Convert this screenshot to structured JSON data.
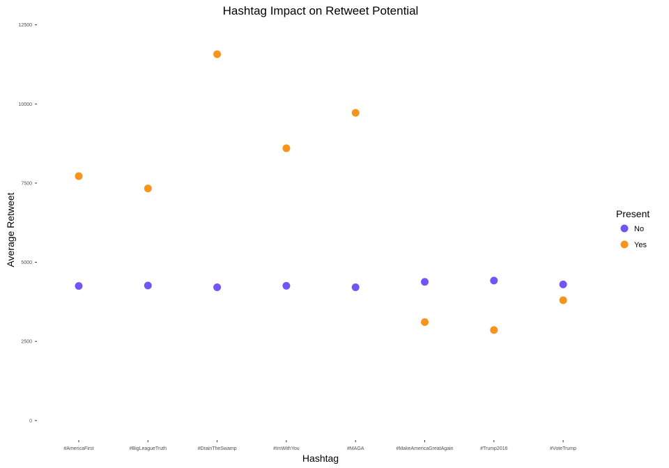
{
  "chart_data": {
    "type": "scatter",
    "title": "Hashtag Impact on Retweet Potential",
    "xlabel": "Hashtag",
    "ylabel": "Average Retweet",
    "categories": [
      "#AmericaFirst",
      "#BigLeagueTruth",
      "#DrainTheSwamp",
      "#ImWithYou",
      "#MAGA",
      "#MakeAmericaGreatAgain",
      "#Trump2016",
      "#VoteTrump"
    ],
    "ylim": [
      -400,
      12800
    ],
    "yticks": [
      0,
      2500,
      5000,
      7500,
      10000,
      12500
    ],
    "grid": false,
    "legend": {
      "title": "Present",
      "position": "right"
    },
    "series": [
      {
        "name": "No",
        "color": "#7255f5",
        "values": [
          4250,
          4265,
          4210,
          4255,
          4210,
          4380,
          4420,
          4300
        ]
      },
      {
        "name": "Yes",
        "color": "#f7941d",
        "values": [
          7720,
          7330,
          11570,
          8600,
          9720,
          3110,
          2860,
          3800
        ]
      }
    ]
  }
}
